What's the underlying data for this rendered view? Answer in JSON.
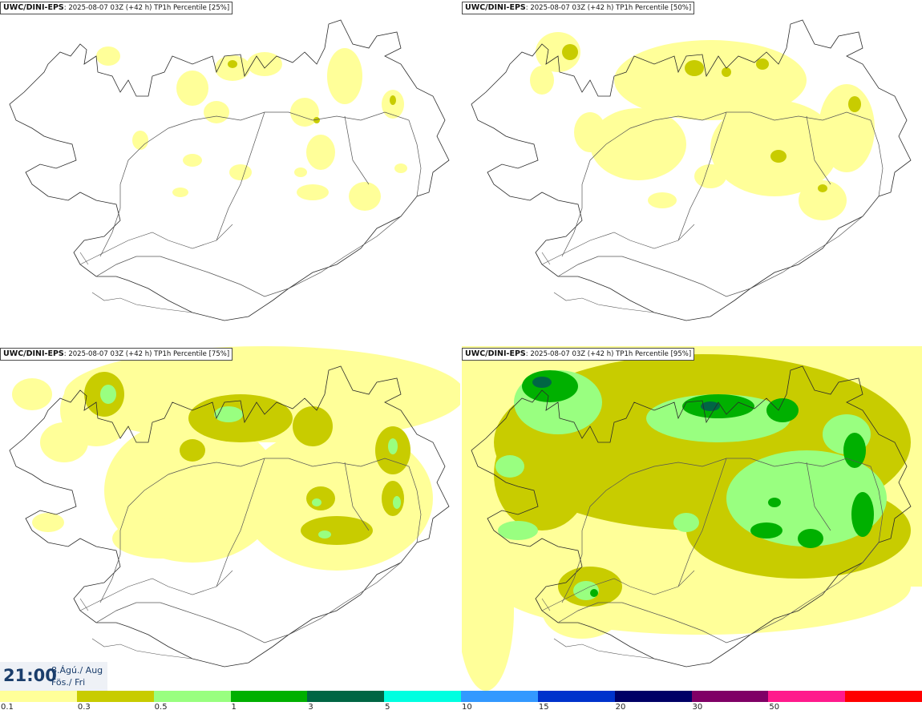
{
  "panels": [
    {
      "source": "UWC/DINI-EPS",
      "info": ": 2025-08-07 03Z (+42 h)",
      "product": "TP1h Percentile [25%]"
    },
    {
      "source": "UWC/DINI-EPS",
      "info": ": 2025-08-07 03Z (+42 h)",
      "product": "TP1h Percentile [50%]"
    },
    {
      "source": "UWC/DINI-EPS",
      "info": ": 2025-08-07 03Z (+42 h)",
      "product": "TP1h Percentile [75%]"
    },
    {
      "source": "UWC/DINI-EPS",
      "info": ": 2025-08-07 03Z (+42 h)",
      "product": "TP1h Percentile [95%]"
    }
  ],
  "valid_time": {
    "time": "21:00",
    "date": "8.Ágú./ Aug",
    "weekday": "Fös./ Fri"
  },
  "legend": {
    "ticks": [
      "0.1",
      "0.3",
      "0.5",
      "1",
      "3",
      "5",
      "10",
      "15",
      "20",
      "30",
      "50"
    ],
    "colors": [
      "#ffff99",
      "#c8cc00",
      "#99ff80",
      "#00b000",
      "#006644",
      "#00ffe0",
      "#3399ff",
      "#0033cc",
      "#000066",
      "#800066",
      "#ff1a8c",
      "#ff0000"
    ]
  }
}
